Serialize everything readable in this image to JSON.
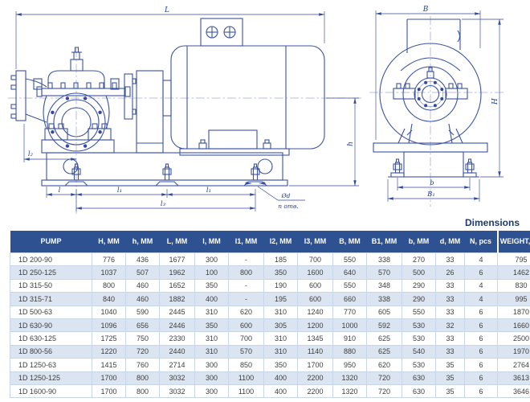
{
  "table": {
    "title": "Dimensions",
    "columns": [
      "PUMP",
      "H, MM",
      "h, MM",
      "L, MM",
      "l, MM",
      "l1, MM",
      "l2, MM",
      "l3, MM",
      "B, MM",
      "B1, MM",
      "b, MM",
      "d, MM",
      "N, pcs",
      "WEIGHT, KG"
    ],
    "rows": [
      [
        "1D 200-90",
        "776",
        "436",
        "1677",
        "300",
        "-",
        "185",
        "700",
        "550",
        "338",
        "270",
        "33",
        "4",
        "795"
      ],
      [
        "1D 250-125",
        "1037",
        "507",
        "1962",
        "100",
        "800",
        "350",
        "1600",
        "640",
        "570",
        "500",
        "26",
        "6",
        "1462"
      ],
      [
        "1D 315-50",
        "800",
        "460",
        "1652",
        "350",
        "-",
        "190",
        "600",
        "550",
        "348",
        "290",
        "33",
        "4",
        "830"
      ],
      [
        "1D 315-71",
        "840",
        "460",
        "1882",
        "400",
        "-",
        "195",
        "600",
        "660",
        "338",
        "290",
        "33",
        "4",
        "995"
      ],
      [
        "1D 500-63",
        "1040",
        "590",
        "2445",
        "310",
        "620",
        "310",
        "1240",
        "770",
        "605",
        "550",
        "33",
        "6",
        "1870"
      ],
      [
        "1D 630-90",
        "1096",
        "656",
        "2446",
        "350",
        "600",
        "305",
        "1200",
        "1000",
        "592",
        "530",
        "32",
        "6",
        "1660"
      ],
      [
        "1D 630-125",
        "1725",
        "750",
        "2330",
        "310",
        "700",
        "310",
        "1345",
        "910",
        "625",
        "530",
        "33",
        "6",
        "2500"
      ],
      [
        "1D 800-56",
        "1220",
        "720",
        "2440",
        "310",
        "570",
        "310",
        "1140",
        "880",
        "625",
        "540",
        "33",
        "6",
        "1970"
      ],
      [
        "1D 1250-63",
        "1415",
        "760",
        "2714",
        "300",
        "850",
        "350",
        "1700",
        "950",
        "620",
        "530",
        "35",
        "6",
        "2764"
      ],
      [
        "1D 1250-125",
        "1700",
        "800",
        "3032",
        "300",
        "1100",
        "400",
        "2200",
        "1320",
        "720",
        "630",
        "35",
        "6",
        "3613"
      ],
      [
        "1D 1600-90",
        "1700",
        "800",
        "3032",
        "300",
        "1100",
        "400",
        "2200",
        "1320",
        "720",
        "630",
        "35",
        "6",
        "3646"
      ]
    ]
  },
  "drawing": {
    "side_view": {
      "length_label": "L",
      "height_label": "h",
      "l_label": "l",
      "l1_label": "l₁",
      "l2_label": "l₂",
      "l3_label": "l₃",
      "hole_dia_label": "Ød",
      "hole_count_label": "n отв."
    },
    "front_view": {
      "width_label": "B",
      "height_label": "H",
      "b_label": "b",
      "b1_label": "B₁"
    }
  },
  "colors": {
    "header_bg": "#2e5191",
    "row_alt_bg": "#dbe5f1",
    "drawing_line": "#3b53a0",
    "title_color": "#1d3a6d"
  }
}
